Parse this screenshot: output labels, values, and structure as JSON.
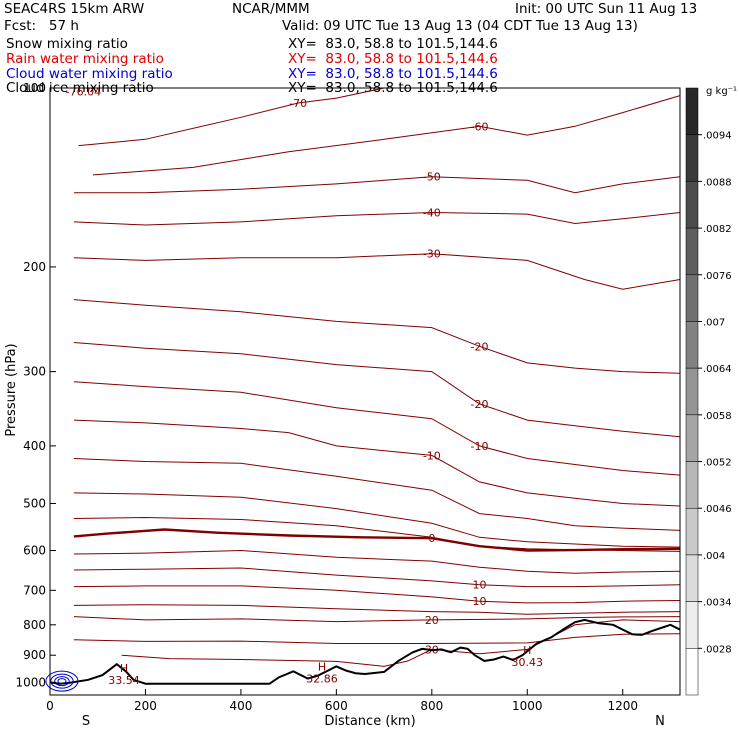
{
  "header": {
    "model": "SEAC4RS 15km ARW",
    "center": "NCAR/MMM",
    "init": "Init: 00 UTC Sun 11 Aug 13",
    "fcst": "Fcst:   57 h",
    "valid": "Valid: 09 UTC Tue 13 Aug 13 (04 CDT Tue 13 Aug 13)"
  },
  "fields": [
    {
      "name": "Snow mixing ratio",
      "xy": "XY=  83.0, 58.8 to 101.5,144.6",
      "color": "#000000"
    },
    {
      "name": "Rain water mixing ratio",
      "xy": "XY=  83.0, 58.8 to 101.5,144.6",
      "color": "#e00000"
    },
    {
      "name": "Cloud water mixing ratio",
      "xy": "XY=  83.0, 58.8 to 101.5,144.6",
      "color": "#0000d0"
    },
    {
      "name": "Cloud ice mixing ratio",
      "xy": "XY=  83.0, 58.8 to 101.5,144.6",
      "color": "#000000"
    }
  ],
  "colors": {
    "temperature": "#800000",
    "terrain": "#000000",
    "cloud_water": "#0000d0",
    "frame": "#000000"
  },
  "chart_data": {
    "type": "line",
    "xlabel": "Distance (km)",
    "ylabel": "Pressure (hPa)",
    "xlim": [
      0,
      1320
    ],
    "ylim": [
      1050,
      100
    ],
    "y_scale": "log",
    "x_ticks": [
      0,
      200,
      400,
      600,
      800,
      1000,
      1200
    ],
    "y_ticks": [
      100,
      200,
      300,
      400,
      500,
      600,
      700,
      800,
      900,
      1000
    ],
    "x_end_labels": [
      "S",
      "N"
    ],
    "grid": false,
    "colorbar": {
      "unit": "g kg⁻¹",
      "tick_labels": [
        ".0094",
        ".0088",
        ".0082",
        ".0076",
        ".007",
        ".0064",
        ".0058",
        ".0052",
        ".0046",
        ".004",
        ".0034",
        ".0028"
      ],
      "tick_values": [
        0.0094,
        0.0088,
        0.0082,
        0.0076,
        0.007,
        0.0064,
        0.0058,
        0.0052,
        0.0046,
        0.004,
        0.0034,
        0.0028
      ]
    },
    "temperature_contours": [
      {
        "label": "-70",
        "points": [
          [
            60,
            125
          ],
          [
            200,
            122
          ],
          [
            400,
            112
          ],
          [
            520,
            106
          ],
          [
            600,
            104
          ],
          [
            700,
            100
          ],
          [
            1000,
            100
          ]
        ]
      },
      {
        "label": "-60",
        "points": [
          [
            90,
            140
          ],
          [
            300,
            136
          ],
          [
            500,
            128
          ],
          [
            700,
            122
          ],
          [
            900,
            116
          ],
          [
            1000,
            120
          ],
          [
            1100,
            116
          ],
          [
            1200,
            110
          ],
          [
            1320,
            103
          ]
        ]
      },
      {
        "label": "-50",
        "points": [
          [
            50,
            150
          ],
          [
            200,
            150
          ],
          [
            400,
            148
          ],
          [
            600,
            145
          ],
          [
            800,
            141
          ],
          [
            1000,
            143
          ],
          [
            1100,
            150
          ],
          [
            1200,
            145
          ],
          [
            1320,
            141
          ]
        ]
      },
      {
        "label": "-40",
        "points": [
          [
            50,
            168
          ],
          [
            200,
            170
          ],
          [
            400,
            168
          ],
          [
            600,
            164
          ],
          [
            800,
            162
          ],
          [
            1000,
            163
          ],
          [
            1100,
            169
          ],
          [
            1200,
            166
          ],
          [
            1320,
            162
          ]
        ]
      },
      {
        "label": "-30",
        "points": [
          [
            50,
            193
          ],
          [
            200,
            195
          ],
          [
            400,
            193
          ],
          [
            600,
            193
          ],
          [
            800,
            190
          ],
          [
            1000,
            195
          ],
          [
            1120,
            210
          ],
          [
            1200,
            218
          ],
          [
            1320,
            210
          ]
        ]
      },
      {
        "label": "-20",
        "points": [
          [
            50,
            227
          ],
          [
            200,
            232
          ],
          [
            400,
            238
          ],
          [
            600,
            247
          ],
          [
            800,
            253
          ],
          [
            900,
            272
          ],
          [
            1000,
            290
          ],
          [
            1100,
            296
          ],
          [
            1200,
            300
          ],
          [
            1320,
            302
          ]
        ]
      },
      {
        "label": "-20",
        "points": [
          [
            50,
            268
          ],
          [
            200,
            274
          ],
          [
            400,
            280
          ],
          [
            600,
            292
          ],
          [
            800,
            300
          ],
          [
            900,
            340
          ],
          [
            1000,
            362
          ],
          [
            1100,
            370
          ],
          [
            1200,
            378
          ],
          [
            1320,
            386
          ]
        ]
      },
      {
        "label": "-10",
        "points": [
          [
            50,
            312
          ],
          [
            200,
            318
          ],
          [
            400,
            325
          ],
          [
            600,
            345
          ],
          [
            800,
            360
          ],
          [
            900,
            400
          ],
          [
            1000,
            420
          ],
          [
            1100,
            430
          ],
          [
            1200,
            440
          ],
          [
            1320,
            448
          ]
        ]
      },
      {
        "label": "-10",
        "points": [
          [
            50,
            362
          ],
          [
            200,
            366
          ],
          [
            400,
            374
          ],
          [
            500,
            380
          ],
          [
            600,
            400
          ],
          [
            800,
            415
          ],
          [
            900,
            460
          ],
          [
            1000,
            480
          ],
          [
            1100,
            490
          ],
          [
            1200,
            500
          ],
          [
            1320,
            505
          ]
        ]
      },
      {
        "label": "",
        "points": [
          [
            50,
            420
          ],
          [
            200,
            425
          ],
          [
            400,
            428
          ],
          [
            600,
            450
          ],
          [
            800,
            475
          ],
          [
            900,
            520
          ],
          [
            1000,
            530
          ],
          [
            1100,
            545
          ],
          [
            1200,
            550
          ],
          [
            1320,
            555
          ]
        ]
      },
      {
        "label": "",
        "points": [
          [
            50,
            480
          ],
          [
            200,
            482
          ],
          [
            400,
            488
          ],
          [
            600,
            510
          ],
          [
            800,
            540
          ],
          [
            900,
            570
          ],
          [
            1000,
            580
          ],
          [
            1100,
            585
          ],
          [
            1200,
            590
          ],
          [
            1320,
            592
          ]
        ]
      },
      {
        "label": "",
        "points": [
          [
            50,
            530
          ],
          [
            200,
            528
          ],
          [
            400,
            532
          ],
          [
            600,
            545
          ],
          [
            800,
            570
          ],
          [
            900,
            590
          ],
          [
            1000,
            596
          ],
          [
            1100,
            598
          ],
          [
            1200,
            600
          ],
          [
            1320,
            602
          ]
        ]
      },
      {
        "label": "0",
        "points": [
          [
            50,
            568
          ],
          [
            120,
            562
          ],
          [
            240,
            553
          ],
          [
            350,
            560
          ],
          [
            500,
            566
          ],
          [
            650,
            570
          ],
          [
            800,
            572
          ],
          [
            900,
            590
          ],
          [
            1000,
            600
          ],
          [
            1100,
            599
          ],
          [
            1200,
            597
          ],
          [
            1320,
            596
          ]
        ]
      },
      {
        "label": "",
        "points": [
          [
            50,
            608
          ],
          [
            200,
            606
          ],
          [
            400,
            600
          ],
          [
            600,
            616
          ],
          [
            800,
            625
          ],
          [
            900,
            640
          ],
          [
            1000,
            650
          ],
          [
            1100,
            655
          ],
          [
            1200,
            652
          ],
          [
            1320,
            650
          ]
        ]
      },
      {
        "label": "10",
        "points": [
          [
            50,
            647
          ],
          [
            200,
            645
          ],
          [
            400,
            642
          ],
          [
            600,
            660
          ],
          [
            800,
            675
          ],
          [
            900,
            685
          ],
          [
            1000,
            690
          ],
          [
            1100,
            690
          ],
          [
            1200,
            688
          ],
          [
            1320,
            685
          ]
        ]
      },
      {
        "label": "10",
        "points": [
          [
            50,
            690
          ],
          [
            200,
            688
          ],
          [
            400,
            688
          ],
          [
            600,
            700
          ],
          [
            800,
            718
          ],
          [
            900,
            730
          ],
          [
            1000,
            735
          ],
          [
            1100,
            734
          ],
          [
            1200,
            730
          ],
          [
            1320,
            728
          ]
        ]
      },
      {
        "label": "",
        "points": [
          [
            50,
            742
          ],
          [
            200,
            740
          ],
          [
            400,
            742
          ],
          [
            600,
            752
          ],
          [
            800,
            760
          ],
          [
            900,
            762
          ],
          [
            1000,
            768
          ],
          [
            1100,
            765
          ],
          [
            1200,
            762
          ],
          [
            1320,
            760
          ]
        ]
      },
      {
        "label": "20",
        "points": [
          [
            50,
            775
          ],
          [
            200,
            785
          ],
          [
            400,
            782
          ],
          [
            600,
            790
          ],
          [
            800,
            785
          ],
          [
            1000,
            782
          ],
          [
            1100,
            778
          ],
          [
            1200,
            776
          ],
          [
            1320,
            775
          ]
        ]
      },
      {
        "label": "",
        "points": [
          [
            50,
            848
          ],
          [
            200,
            853
          ],
          [
            400,
            852
          ],
          [
            600,
            860
          ],
          [
            800,
            860
          ],
          [
            1000,
            858
          ],
          [
            1100,
            840
          ],
          [
            1200,
            830
          ],
          [
            1320,
            828
          ]
        ]
      },
      {
        "label": "30",
        "points": [
          [
            150,
            900
          ],
          [
            250,
            912
          ],
          [
            400,
            915
          ],
          [
            600,
            922
          ],
          [
            700,
            940
          ],
          [
            750,
            920
          ],
          [
            800,
            880
          ],
          [
            900,
            895
          ],
          [
            1000,
            880
          ],
          [
            1100,
            800
          ],
          [
            1200,
            785
          ],
          [
            1320,
            790
          ]
        ]
      }
    ],
    "terrain": [
      [
        0,
        1000
      ],
      [
        20,
        1005
      ],
      [
        40,
        1002
      ],
      [
        80,
        990
      ],
      [
        110,
        972
      ],
      [
        140,
        932
      ],
      [
        160,
        960
      ],
      [
        175,
        990
      ],
      [
        200,
        1005
      ],
      [
        250,
        1005
      ],
      [
        300,
        1005
      ],
      [
        400,
        1005
      ],
      [
        460,
        1005
      ],
      [
        480,
        980
      ],
      [
        510,
        958
      ],
      [
        540,
        985
      ],
      [
        560,
        975
      ],
      [
        600,
        940
      ],
      [
        620,
        955
      ],
      [
        640,
        965
      ],
      [
        660,
        968
      ],
      [
        700,
        960
      ],
      [
        730,
        920
      ],
      [
        760,
        890
      ],
      [
        780,
        878
      ],
      [
        800,
        883
      ],
      [
        820,
        880
      ],
      [
        840,
        890
      ],
      [
        860,
        874
      ],
      [
        875,
        878
      ],
      [
        890,
        900
      ],
      [
        910,
        920
      ],
      [
        930,
        915
      ],
      [
        950,
        905
      ],
      [
        970,
        917
      ],
      [
        990,
        900
      ],
      [
        1020,
        860
      ],
      [
        1050,
        840
      ],
      [
        1080,
        810
      ],
      [
        1100,
        792
      ],
      [
        1120,
        785
      ],
      [
        1150,
        795
      ],
      [
        1180,
        800
      ],
      [
        1200,
        815
      ],
      [
        1220,
        830
      ],
      [
        1240,
        832
      ],
      [
        1260,
        820
      ],
      [
        1280,
        810
      ],
      [
        1300,
        800
      ],
      [
        1320,
        815
      ]
    ],
    "annotations": [
      {
        "text": "-76.04"
      },
      {
        "text": "H\n33.54"
      },
      {
        "text": "H\n32.86"
      },
      {
        "text": "H\n30.43"
      }
    ]
  }
}
